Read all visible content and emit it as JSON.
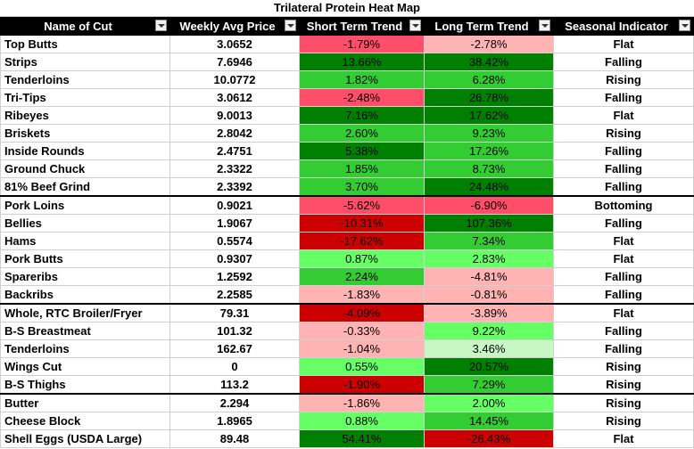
{
  "title": "Trilateral Protein Heat Map",
  "headers": {
    "name": "Name of Cut",
    "price": "Weekly Avg Price",
    "short": "Short Term Trend",
    "long": "Long Term Trend",
    "season": "Seasonal Indicator"
  },
  "colors": {
    "dark_green": "#008000",
    "medium_green": "#33cc33",
    "light_green": "#66ff66",
    "pale_green": "#c8f7c5",
    "pink": "#ffb3b3",
    "red": "#ff4d6a",
    "dark_red": "#cc0000"
  },
  "rows": [
    {
      "name": "Top Butts",
      "price": "3.0652",
      "short": "-1.79%",
      "short_color": "#ff4d6a",
      "long": "-2.78%",
      "long_color": "#ffb3b3",
      "season": "Flat"
    },
    {
      "name": "Strips",
      "price": "7.6946",
      "short": "13.66%",
      "short_color": "#008000",
      "long": "38.42%",
      "long_color": "#008000",
      "season": "Falling"
    },
    {
      "name": "Tenderloins",
      "price": "10.0772",
      "short": "1.82%",
      "short_color": "#33cc33",
      "long": "6.28%",
      "long_color": "#33cc33",
      "season": "Rising"
    },
    {
      "name": "Tri-Tips",
      "price": "3.0612",
      "short": "-2.48%",
      "short_color": "#ff4d6a",
      "long": "26.78%",
      "long_color": "#008000",
      "season": "Falling"
    },
    {
      "name": "Ribeyes",
      "price": "9.0013",
      "short": "7.16%",
      "short_color": "#008000",
      "long": "17.62%",
      "long_color": "#008000",
      "season": "Flat"
    },
    {
      "name": "Briskets",
      "price": "2.8042",
      "short": "2.60%",
      "short_color": "#33cc33",
      "long": "9.23%",
      "long_color": "#33cc33",
      "season": "Rising"
    },
    {
      "name": "Inside Rounds",
      "price": "2.4751",
      "short": "5.38%",
      "short_color": "#008000",
      "long": "17.26%",
      "long_color": "#33cc33",
      "season": "Falling"
    },
    {
      "name": "Ground Chuck",
      "price": "2.3322",
      "short": "1.85%",
      "short_color": "#33cc33",
      "long": "8.73%",
      "long_color": "#33cc33",
      "season": "Falling"
    },
    {
      "name": "81% Beef Grind",
      "price": "2.3392",
      "short": "3.70%",
      "short_color": "#33cc33",
      "long": "24.48%",
      "long_color": "#008000",
      "season": "Falling"
    },
    {
      "name": "Pork Loins",
      "price": "0.9021",
      "short": "-5.62%",
      "short_color": "#ff4d6a",
      "long": "-6.90%",
      "long_color": "#ff4d6a",
      "season": "Bottoming"
    },
    {
      "name": "Bellies",
      "price": "1.9067",
      "short": "-10.31%",
      "short_color": "#cc0000",
      "long": "107.36%",
      "long_color": "#008000",
      "season": "Falling"
    },
    {
      "name": "Hams",
      "price": "0.5574",
      "short": "-17.62%",
      "short_color": "#cc0000",
      "long": "7.34%",
      "long_color": "#33cc33",
      "season": "Flat"
    },
    {
      "name": "Pork Butts",
      "price": "0.9307",
      "short": "0.87%",
      "short_color": "#66ff66",
      "long": "2.83%",
      "long_color": "#66ff66",
      "season": "Flat"
    },
    {
      "name": "Spareribs",
      "price": "1.2592",
      "short": "2.24%",
      "short_color": "#33cc33",
      "long": "-4.81%",
      "long_color": "#ffb3b3",
      "season": "Falling"
    },
    {
      "name": "Backribs",
      "price": "2.2585",
      "short": "-1.83%",
      "short_color": "#ffb3b3",
      "long": "-0.81%",
      "long_color": "#ffb3b3",
      "season": "Falling"
    },
    {
      "name": "Whole, RTC Broiler/Fryer",
      "price": "79.31",
      "short": "-4.09%",
      "short_color": "#cc0000",
      "long": "-3.89%",
      "long_color": "#ffb3b3",
      "season": "Flat"
    },
    {
      "name": "B-S Breastmeat",
      "price": "101.32",
      "short": "-0.33%",
      "short_color": "#ffb3b3",
      "long": "9.22%",
      "long_color": "#66ff66",
      "season": "Falling"
    },
    {
      "name": "Tenderloins",
      "price": "162.67",
      "short": "-1.04%",
      "short_color": "#ffb3b3",
      "long": "3.46%",
      "long_color": "#c8f7c5",
      "season": "Falling"
    },
    {
      "name": "Wings Cut",
      "price": "0",
      "short": "0.55%",
      "short_color": "#66ff66",
      "long": "20.57%",
      "long_color": "#008000",
      "season": "Rising"
    },
    {
      "name": "B-S Thighs",
      "price": "113.2",
      "short": "-1.90%",
      "short_color": "#cc0000",
      "long": "7.29%",
      "long_color": "#33cc33",
      "season": "Rising"
    },
    {
      "name": "Butter",
      "price": "2.294",
      "short": "-1.86%",
      "short_color": "#ffb3b3",
      "long": "2.00%",
      "long_color": "#66ff66",
      "season": "Rising"
    },
    {
      "name": "Cheese Block",
      "price": "1.8965",
      "short": "0.88%",
      "short_color": "#66ff66",
      "long": "14.45%",
      "long_color": "#33cc33",
      "season": "Rising"
    },
    {
      "name": "Shell Eggs (USDA Large)",
      "price": "89.48",
      "short": "54.41%",
      "short_color": "#008000",
      "long": "-26.43%",
      "long_color": "#cc0000",
      "season": "Flat"
    }
  ]
}
